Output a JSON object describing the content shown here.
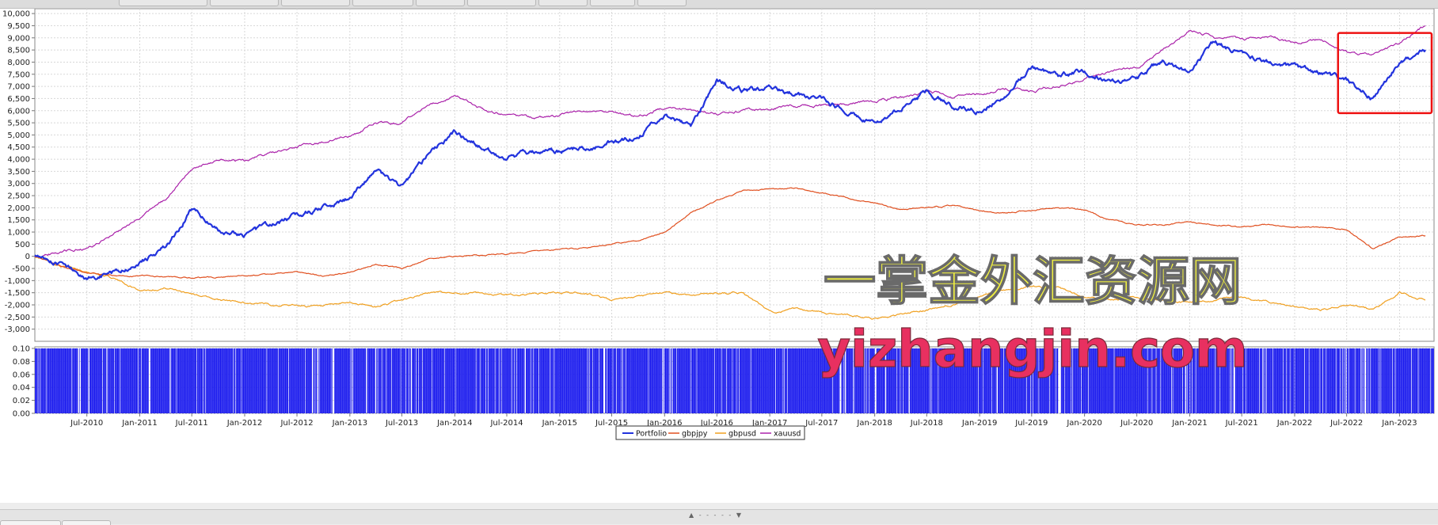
{
  "chart_data": [
    {
      "type": "line",
      "title": "",
      "xlabel": "",
      "ylabel": "",
      "ylim": [
        -3500,
        10200
      ],
      "yticks": [
        -3000,
        -2500,
        -2000,
        -1500,
        -1000,
        -500,
        0,
        500,
        1000,
        1500,
        2000,
        2500,
        3000,
        3500,
        4000,
        4500,
        5000,
        5500,
        6000,
        6500,
        7000,
        7500,
        8000,
        8500,
        9000,
        9500,
        10000
      ],
      "ytick_labels": [
        "-3,000",
        "-2,500",
        "-2,000",
        "-1,500",
        "-1,000",
        "-500",
        "0",
        "500",
        "1,000",
        "1,500",
        "2,000",
        "2,500",
        "3,000",
        "3,500",
        "4,000",
        "4,500",
        "5,000",
        "5,500",
        "6,000",
        "6,500",
        "7,000",
        "7,500",
        "8,000",
        "8,500",
        "9,000",
        "9,500",
        "10,000"
      ],
      "xlim": [
        "2010-01-01",
        "2023-05-01"
      ],
      "grid": true,
      "x": [
        "2010-01",
        "2010-04",
        "2010-07",
        "2010-10",
        "2011-01",
        "2011-04",
        "2011-07",
        "2011-10",
        "2012-01",
        "2012-04",
        "2012-07",
        "2012-10",
        "2013-01",
        "2013-04",
        "2013-07",
        "2013-10",
        "2014-01",
        "2014-04",
        "2014-07",
        "2014-10",
        "2015-01",
        "2015-04",
        "2015-07",
        "2015-10",
        "2016-01",
        "2016-04",
        "2016-07",
        "2016-10",
        "2017-01",
        "2017-04",
        "2017-07",
        "2017-10",
        "2018-01",
        "2018-04",
        "2018-07",
        "2018-10",
        "2019-01",
        "2019-04",
        "2019-07",
        "2019-10",
        "2020-01",
        "2020-04",
        "2020-07",
        "2020-10",
        "2021-01",
        "2021-04",
        "2021-07",
        "2021-10",
        "2022-01",
        "2022-04",
        "2022-07",
        "2022-10",
        "2023-01",
        "2023-04"
      ],
      "series": [
        {
          "name": "Portfolio",
          "color": "#2233dd",
          "values": [
            0,
            -350,
            -900,
            -700,
            -300,
            400,
            1900,
            1100,
            900,
            1200,
            1700,
            2000,
            2400,
            3500,
            2900,
            4200,
            5100,
            4500,
            4000,
            4300,
            4300,
            4500,
            4700,
            4900,
            5800,
            5300,
            7300,
            6800,
            6900,
            6700,
            6400,
            6000,
            5400,
            6100,
            6800,
            6200,
            6000,
            6700,
            7800,
            7400,
            7600,
            7200,
            7300,
            8100,
            7600,
            8800,
            8300,
            8000,
            7800,
            7500,
            7200,
            6500,
            8000,
            8500
          ]
        },
        {
          "name": "gbpjpy",
          "color": "#e05020",
          "values": [
            0,
            -400,
            -700,
            -800,
            -800,
            -850,
            -900,
            -850,
            -800,
            -750,
            -650,
            -800,
            -650,
            -300,
            -500,
            -100,
            0,
            50,
            100,
            200,
            250,
            350,
            500,
            650,
            1000,
            1800,
            2300,
            2700,
            2750,
            2800,
            2600,
            2400,
            2200,
            1900,
            2000,
            2100,
            1900,
            1800,
            1900,
            2000,
            1900,
            1500,
            1300,
            1300,
            1400,
            1300,
            1200,
            1300,
            1200,
            1200,
            1100,
            300,
            800,
            850
          ]
        },
        {
          "name": "gbpusd",
          "color": "#f0a020",
          "values": [
            0,
            -400,
            -600,
            -900,
            -1400,
            -1300,
            -1500,
            -1800,
            -1900,
            -2000,
            -2000,
            -2100,
            -1900,
            -2100,
            -1800,
            -1500,
            -1500,
            -1500,
            -1600,
            -1550,
            -1500,
            -1500,
            -1800,
            -1700,
            -1500,
            -1600,
            -1500,
            -1500,
            -2300,
            -2200,
            -2300,
            -2400,
            -2600,
            -2400,
            -2200,
            -2000,
            -1600,
            -1400,
            -1200,
            -1300,
            -1700,
            -1800,
            -1700,
            -1800,
            -1900,
            -1800,
            -1700,
            -1900,
            -2100,
            -2200,
            -2000,
            -2200,
            -1500,
            -1800
          ]
        },
        {
          "name": "xauusd",
          "color": "#aa22aa",
          "values": [
            0,
            200,
            300,
            900,
            1600,
            2300,
            3600,
            4000,
            3900,
            4300,
            4500,
            4700,
            5000,
            5500,
            5500,
            6300,
            6600,
            6100,
            5800,
            5700,
            5800,
            6000,
            5900,
            5800,
            6100,
            6000,
            5900,
            6000,
            6100,
            6200,
            6200,
            6300,
            6400,
            6500,
            6800,
            6600,
            6700,
            6900,
            6800,
            7000,
            7300,
            7600,
            7800,
            8500,
            9300,
            9000,
            8900,
            9100,
            8800,
            8900,
            8400,
            8300,
            8800,
            9500
          ]
        }
      ],
      "legend_position": "bottom-center",
      "legend": [
        "Portfolio",
        "gbpjpy",
        "gbpusd",
        "xauusd"
      ]
    },
    {
      "type": "bar",
      "title": "",
      "ylim": [
        0,
        0.1
      ],
      "yticks": [
        0,
        0.02,
        0.04,
        0.06,
        0.08,
        0.1
      ],
      "ytick_labels": [
        "0.00",
        "0.02",
        "0.04",
        "0.06",
        "0.08",
        "0.10"
      ],
      "color": "#1a1aee",
      "note_values": "dense uniform bars of height 0.10 across the whole range; a few gaps",
      "gaps": [
        "2011-02",
        "2012-11",
        "2015-06",
        "2017-09",
        "2018-01",
        "2019-10",
        "2021-06",
        "2022-09"
      ]
    }
  ],
  "xtick_labels": [
    "Jul-2010",
    "Jan-2011",
    "Jul-2011",
    "Jan-2012",
    "Jul-2012",
    "Jan-2013",
    "Jul-2013",
    "Jan-2014",
    "Jul-2014",
    "Jan-2015",
    "Jul-2015",
    "Jan-2016",
    "Jul-2016",
    "Jan-2017",
    "Jul-2017",
    "Jan-2018",
    "Jul-2018",
    "Jan-2019",
    "Jul-2019",
    "Jan-2020",
    "Jul-2020",
    "Jan-2021",
    "Jul-2021",
    "Jan-2022",
    "Jul-2022",
    "Jan-2023"
  ],
  "xtick_dates": [
    "2010-07-01",
    "2011-01-01",
    "2011-07-01",
    "2012-01-01",
    "2012-07-01",
    "2013-01-01",
    "2013-07-01",
    "2014-01-01",
    "2014-07-01",
    "2015-01-01",
    "2015-07-01",
    "2016-01-01",
    "2016-07-01",
    "2017-01-01",
    "2017-07-01",
    "2018-01-01",
    "2018-07-01",
    "2019-01-01",
    "2019-07-01",
    "2020-01-01",
    "2020-07-01",
    "2021-01-01",
    "2021-07-01",
    "2022-01-01",
    "2022-07-01",
    "2023-01-01"
  ],
  "watermark": {
    "line1": "一掌金外汇资源网",
    "line2": "yizhangjin.com",
    "line1_color": "#f0f040",
    "line2_color": "#e83060"
  },
  "highlight_box": {
    "color": "#ee1111",
    "from": "2022-06-01",
    "to": "2023-05-01",
    "y_from": 5900,
    "y_to": 9200
  },
  "splitter_glyph": "▲ - - - - - ▼"
}
